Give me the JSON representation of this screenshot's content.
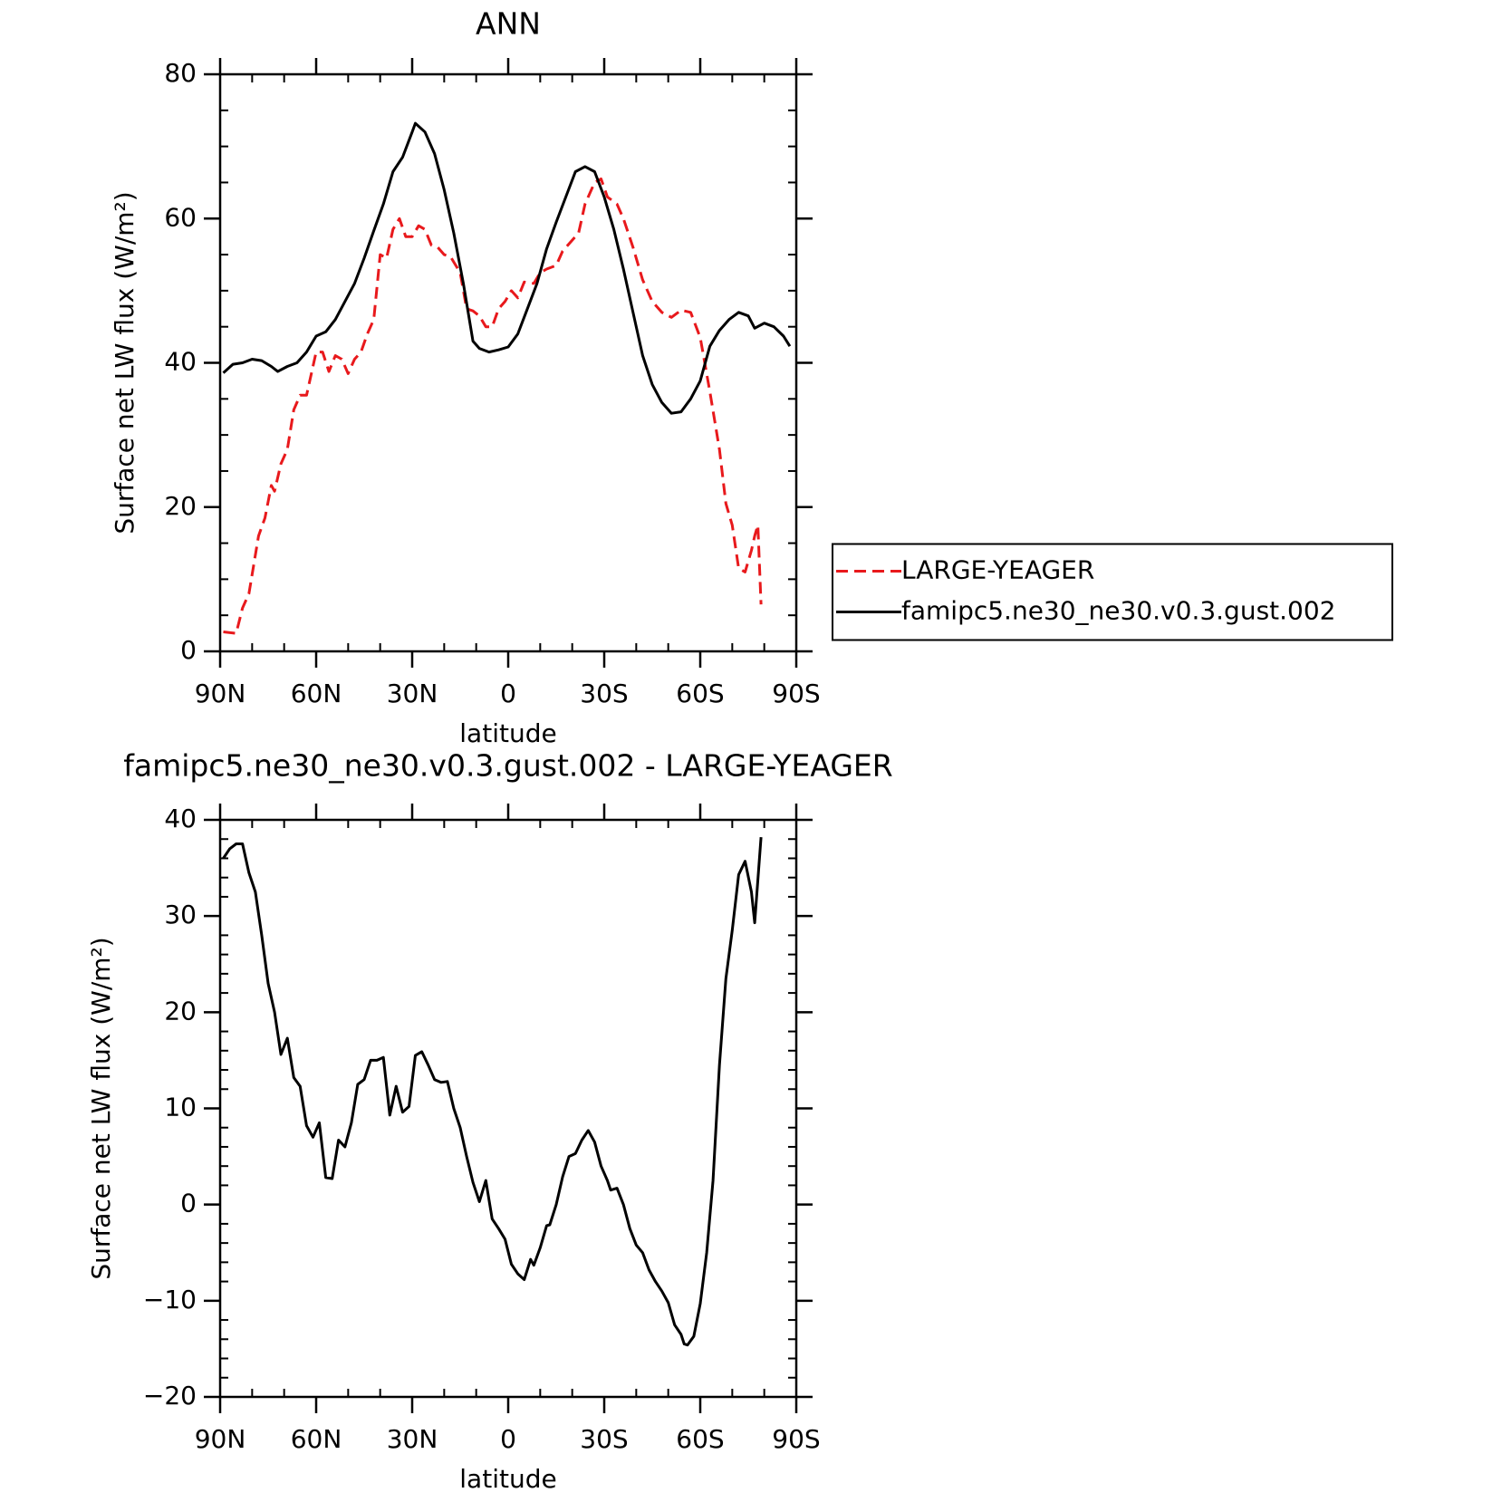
{
  "chart_data": [
    {
      "type": "line",
      "title": "ANN",
      "xlabel": "latitude",
      "ylabel": "Surface net LW flux (W/m²)",
      "xlim": [
        90,
        -90
      ],
      "xticks": [
        {
          "value": 90,
          "label": "90N"
        },
        {
          "value": 60,
          "label": "60N"
        },
        {
          "value": 30,
          "label": "30N"
        },
        0,
        {
          "value": -30,
          "label": "30S"
        },
        {
          "value": -60,
          "label": "60S"
        },
        {
          "value": -90,
          "label": "90S"
        }
      ],
      "ylim": [
        0,
        80
      ],
      "yticks": [
        0,
        20,
        40,
        60,
        80
      ],
      "legend": "right",
      "series": [
        {
          "name": "LARGE-YEAGER",
          "color": "#e8191c",
          "linestyle": "dashed",
          "x": [
            89,
            85,
            83,
            81,
            78,
            76,
            74,
            73,
            71,
            69,
            67,
            65,
            63,
            60,
            58,
            56,
            54,
            52,
            50,
            48,
            46,
            44,
            42,
            40,
            38,
            36,
            34,
            32,
            30,
            28,
            26,
            24,
            22,
            20,
            18,
            15,
            13,
            11,
            9,
            7,
            5,
            3,
            1,
            -1,
            -3,
            -5,
            -8,
            -10,
            -12,
            -15,
            -17,
            -20,
            -22,
            -24,
            -27,
            -29,
            -31,
            -34,
            -36,
            -39,
            -42,
            -45,
            -48,
            -51,
            -54,
            -57,
            -60,
            -63,
            -66,
            -68,
            -70,
            -72,
            -74,
            -76,
            -77,
            -78,
            -79
          ],
          "values": [
            2.7,
            2.5,
            6,
            8,
            16,
            18.5,
            23,
            22.2,
            26,
            28,
            33.5,
            35.5,
            35.5,
            41.5,
            41.5,
            38.8,
            41,
            40.5,
            38.5,
            40.5,
            41.5,
            44,
            46,
            55,
            54.5,
            58.5,
            60,
            57.5,
            57.5,
            59,
            58.5,
            56.3,
            56,
            55,
            54.7,
            52.5,
            47.5,
            47.2,
            46.5,
            45,
            45,
            47.5,
            48.5,
            50,
            49,
            51.2,
            51,
            52.5,
            53,
            53.5,
            55.5,
            57,
            58,
            62,
            65,
            65.5,
            63,
            62,
            60,
            56,
            51.5,
            48.5,
            47,
            46.3,
            47.3,
            47,
            43.5,
            36,
            28,
            20.5,
            17.5,
            11.5,
            11,
            14,
            16,
            17.5,
            6.5
          ]
        },
        {
          "name": "famipc5.ne30_ne30.v0.3.gust.002",
          "color": "#000000",
          "linestyle": "solid",
          "x": [
            89,
            86,
            83,
            80,
            77,
            74,
            72,
            69,
            66,
            63,
            60,
            57,
            54,
            51,
            48,
            45,
            42,
            39,
            36,
            33,
            30,
            29,
            26,
            23,
            20,
            17,
            14,
            11,
            9,
            6,
            3,
            0,
            -3,
            -6,
            -9,
            -12,
            -15,
            -18,
            -21,
            -24,
            -27,
            -30,
            -33,
            -36,
            -39,
            -42,
            -45,
            -48,
            -51,
            -54,
            -57,
            -60,
            -63,
            -66,
            -69,
            -72,
            -75,
            -77,
            -80,
            -83,
            -86,
            -88
          ],
          "values": [
            38.6,
            39.8,
            40,
            40.5,
            40.3,
            39.5,
            38.8,
            39.5,
            40,
            41.5,
            43.7,
            44.3,
            46,
            48.5,
            51,
            54.5,
            58.3,
            62,
            66.5,
            68.5,
            72,
            73.2,
            72,
            69,
            64,
            58,
            51,
            43,
            42,
            41.5,
            41.8,
            42.2,
            44,
            47.5,
            51,
            55.8,
            59.5,
            63,
            66.5,
            67.2,
            66.5,
            63,
            58.5,
            53,
            47,
            41,
            37,
            34.5,
            33,
            33.2,
            35,
            37.5,
            42.3,
            44.5,
            46,
            47,
            46.5,
            44.8,
            45.5,
            45,
            43.7,
            42.3
          ]
        }
      ]
    },
    {
      "type": "line",
      "title": "famipc5.ne30_ne30.v0.3.gust.002 - LARGE-YEAGER",
      "xlabel": "latitude",
      "ylabel": "Surface net LW flux (W/m²)",
      "xlim": [
        90,
        -90
      ],
      "xticks": [
        {
          "value": 90,
          "label": "90N"
        },
        {
          "value": 60,
          "label": "60N"
        },
        {
          "value": 30,
          "label": "30N"
        },
        0,
        {
          "value": -30,
          "label": "30S"
        },
        {
          "value": -60,
          "label": "60S"
        },
        {
          "value": -90,
          "label": "90S"
        }
      ],
      "ylim": [
        -20,
        40
      ],
      "yticks": [
        {
          "value": -20,
          "label": "−20"
        },
        {
          "value": -10,
          "label": "−10"
        },
        0,
        10,
        20,
        30,
        40
      ],
      "series": [
        {
          "color": "#000000",
          "linestyle": "solid",
          "x": [
            89,
            87,
            85,
            83,
            81,
            79,
            77,
            75,
            73,
            71,
            69,
            67,
            65,
            63,
            61,
            59,
            57,
            55,
            53,
            51,
            49,
            47,
            45,
            43,
            41,
            39,
            37,
            35,
            33,
            31,
            29,
            27,
            25,
            23,
            21,
            19,
            17,
            15,
            13,
            11,
            9,
            7,
            5,
            3,
            1,
            -1,
            -3,
            -5,
            -7,
            -8,
            -10,
            -12,
            -13,
            -15,
            -17,
            -19,
            -21,
            -23,
            -25,
            -27,
            -29,
            -31,
            -32,
            -34,
            -36,
            -38,
            -40,
            -42,
            -44,
            -46,
            -48,
            -50,
            -52,
            -54,
            -55,
            -56,
            -58,
            -60,
            -62,
            -64,
            -66,
            -68,
            -70,
            -72,
            -74,
            -76,
            -77,
            -79
          ],
          "values": [
            36,
            37,
            37.5,
            37.5,
            34.5,
            32.5,
            28,
            23,
            20,
            15.6,
            17.3,
            13.2,
            12.3,
            8.2,
            7,
            8.5,
            2.8,
            2.7,
            6.7,
            6,
            8.5,
            12.5,
            13,
            15,
            15,
            15.3,
            9.3,
            12.3,
            9.6,
            10.2,
            15.5,
            15.9,
            14.5,
            13,
            12.7,
            12.8,
            10,
            8,
            5,
            2.3,
            0.3,
            2.5,
            -1.5,
            -2.5,
            -3.6,
            -6.2,
            -7.2,
            -7.8,
            -5.7,
            -6.3,
            -4.5,
            -2.2,
            -2.1,
            0,
            2.9,
            5,
            5.3,
            6.7,
            7.7,
            6.5,
            4,
            2.5,
            1.5,
            1.7,
            0,
            -2.5,
            -4.2,
            -5,
            -6.8,
            -8,
            -9,
            -10.2,
            -12.5,
            -13.5,
            -14.5,
            -14.6,
            -13.7,
            -10.3,
            -5,
            2.5,
            14.5,
            23.5,
            28.5,
            34.3,
            35.7,
            32.5,
            29.3,
            38.2
          ]
        }
      ]
    }
  ]
}
